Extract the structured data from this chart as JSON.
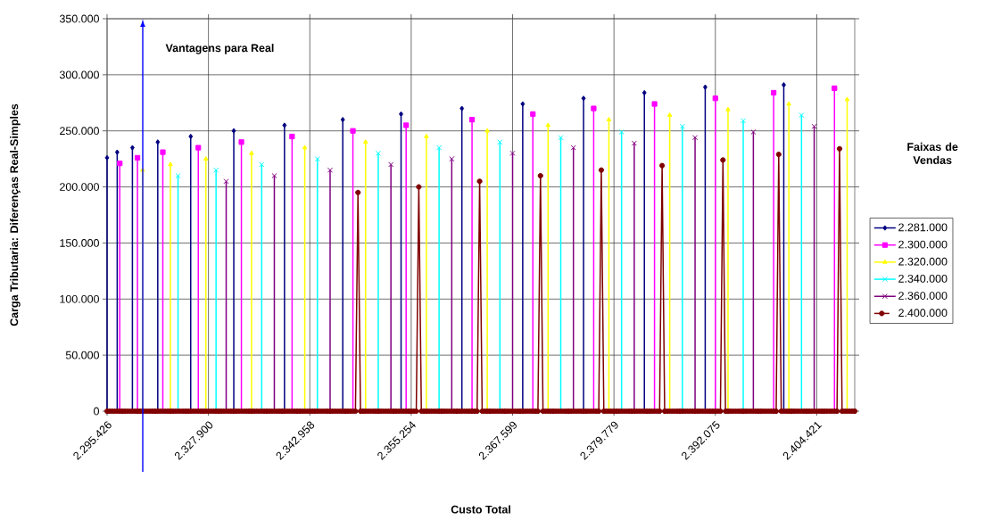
{
  "chart_data": {
    "type": "line",
    "xlabel": "Custo Total",
    "ylabel": "Carga Tributaria: Diferenças Real-Simples",
    "legend_title": "Faixas de Vendas",
    "annotations": [
      "Vantagens para Real"
    ],
    "categories": [
      "2.295.426",
      null,
      null,
      null,
      null,
      null,
      null,
      null,
      null,
      null,
      null,
      null,
      null,
      null,
      null,
      null,
      null,
      null,
      null,
      null,
      null,
      null,
      null,
      null,
      null,
      null,
      null,
      null,
      null,
      null,
      null,
      null,
      null,
      null,
      null,
      null,
      null,
      null,
      null,
      null,
      "2.327.900",
      null,
      null,
      null,
      null,
      null,
      null,
      null,
      null,
      null,
      null,
      null,
      null,
      null,
      null,
      null,
      null,
      null,
      null,
      null,
      null,
      null,
      null,
      null,
      null,
      null,
      null,
      null,
      null,
      null,
      null,
      null,
      null,
      null,
      null,
      null,
      null,
      null,
      null,
      null,
      "2.342.958",
      null,
      null,
      null,
      null,
      null,
      null,
      null,
      null,
      null,
      null,
      null,
      null,
      null,
      null,
      null,
      null,
      null,
      null,
      null,
      null,
      null,
      null,
      null,
      null,
      null,
      null,
      null,
      null,
      null,
      null,
      null,
      null,
      null,
      null,
      null,
      null,
      null,
      null,
      null,
      "2.355.254",
      null,
      null,
      null,
      null,
      null,
      null,
      null,
      null,
      null,
      null,
      null,
      null,
      null,
      null,
      null,
      null,
      null,
      null,
      null,
      null,
      null,
      null,
      null,
      null,
      null,
      null,
      null,
      null,
      null,
      null,
      null,
      null,
      null,
      null,
      null,
      null,
      null,
      null,
      null,
      "2.367.599",
      null,
      null,
      null,
      null,
      null,
      null,
      null,
      null,
      null,
      null,
      null,
      null,
      null,
      null,
      null,
      null,
      null,
      null,
      null,
      null,
      null,
      null,
      null,
      null,
      null,
      null,
      null,
      null,
      null,
      null,
      null,
      null,
      null,
      null,
      null,
      null,
      null,
      null,
      null,
      "2.379.779",
      null,
      null,
      null,
      null,
      null,
      null,
      null,
      null,
      null,
      null,
      null,
      null,
      null,
      null,
      null,
      null,
      null,
      null,
      null,
      null,
      null,
      null,
      null,
      null,
      null,
      null,
      null,
      null,
      null,
      null,
      null,
      null,
      null,
      null,
      null,
      null,
      null,
      null,
      null,
      "2.392.075",
      null,
      null,
      null,
      null,
      null,
      null,
      null,
      null,
      null,
      null,
      null,
      null,
      null,
      null,
      null,
      null,
      null,
      null,
      null,
      null,
      null,
      null,
      null,
      null,
      null,
      null,
      null,
      null,
      null,
      null,
      null,
      null,
      null,
      null,
      null,
      null,
      null,
      null,
      null,
      "2.404.421",
      null,
      null,
      null,
      null,
      null,
      null,
      null,
      null,
      null,
      null,
      null,
      null,
      null,
      null,
      null
    ],
    "series": [
      {
        "name": "2.281.000",
        "color": "#000080",
        "type": "lollipop",
        "marker": "diamond",
        "values": [
          226000,
          null,
          null,
          null,
          231000,
          null,
          null,
          null,
          null,
          null,
          235000,
          null,
          null,
          null,
          null,
          null,
          null,
          null,
          null,
          null,
          240000,
          null,
          null,
          null,
          null,
          null,
          null,
          null,
          null,
          null,
          null,
          null,
          null,
          245000,
          null,
          null,
          null,
          null,
          null,
          null,
          null,
          null,
          null,
          null,
          null,
          null,
          null,
          null,
          null,
          null,
          250000,
          null,
          null,
          null,
          null,
          null,
          null,
          null,
          null,
          null,
          null,
          null,
          null,
          null,
          null,
          null,
          null,
          null,
          null,
          null,
          255000,
          null,
          null,
          null,
          null,
          null,
          null,
          null,
          null,
          null,
          null,
          null,
          null,
          null,
          null,
          null,
          null,
          null,
          null,
          null,
          null,
          null,
          null,
          260000,
          null,
          null,
          null,
          null,
          null,
          null,
          null,
          null,
          null,
          null,
          null,
          null,
          null,
          null,
          null,
          null,
          null,
          null,
          null,
          null,
          null,
          null,
          265000,
          null,
          null,
          null,
          null,
          null,
          null,
          null,
          null,
          null,
          null,
          null,
          null,
          null,
          null,
          null,
          null,
          null,
          null,
          null,
          null,
          null,
          null,
          null,
          270000,
          null,
          null,
          null,
          null,
          null,
          null,
          null,
          null,
          null,
          null,
          null,
          null,
          null,
          null,
          null,
          null,
          null,
          null,
          null,
          null,
          null,
          null,
          null,
          274000,
          null,
          null,
          null,
          null,
          null,
          null,
          null,
          null,
          null,
          null,
          null,
          null,
          null,
          null,
          null,
          null,
          null,
          null,
          null,
          null,
          null,
          null,
          null,
          279000,
          null,
          null,
          null,
          null,
          null,
          null,
          null,
          null,
          null,
          null,
          null,
          null,
          null,
          null,
          null,
          null,
          null,
          null,
          null,
          null,
          null,
          null,
          null,
          284000,
          null,
          null,
          null,
          null,
          null,
          null,
          null,
          null,
          null,
          null,
          null,
          null,
          null,
          null,
          null,
          null,
          null,
          null,
          null,
          null,
          null,
          null,
          null,
          289000,
          null,
          null,
          null,
          null,
          null,
          null,
          null,
          null,
          null,
          null,
          null,
          null,
          null,
          null,
          null,
          null,
          null,
          null,
          null,
          null,
          null,
          null,
          null,
          null,
          null,
          null,
          null,
          null,
          null,
          null,
          291000,
          null,
          null,
          null,
          null,
          null,
          null,
          null,
          null,
          null,
          null,
          null,
          null,
          null,
          null,
          null,
          null,
          null,
          null,
          null,
          null,
          null,
          null,
          null,
          null,
          null,
          null,
          null,
          null
        ]
      },
      {
        "name": "2.300.000",
        "color": "#ff00ff",
        "type": "lollipop",
        "marker": "square",
        "values": [
          null,
          null,
          null,
          null,
          null,
          221000,
          null,
          null,
          null,
          null,
          null,
          null,
          226000,
          null,
          null,
          null,
          null,
          null,
          null,
          null,
          null,
          null,
          231000,
          null,
          null,
          null,
          null,
          null,
          null,
          null,
          null,
          null,
          null,
          null,
          null,
          null,
          235000,
          null,
          null,
          null,
          null,
          null,
          null,
          null,
          null,
          null,
          null,
          null,
          null,
          null,
          null,
          null,
          null,
          240000,
          null,
          null,
          null,
          null,
          null,
          null,
          null,
          null,
          null,
          null,
          null,
          null,
          null,
          null,
          null,
          null,
          null,
          null,
          null,
          245000,
          null,
          null,
          null,
          null,
          null,
          null,
          null,
          null,
          null,
          null,
          null,
          null,
          null,
          null,
          null,
          null,
          null,
          null,
          null,
          null,
          null,
          null,
          null,
          250000,
          null,
          null,
          null,
          null,
          null,
          null,
          null,
          null,
          null,
          null,
          null,
          null,
          null,
          null,
          null,
          null,
          null,
          null,
          null,
          null,
          255000,
          null,
          null,
          null,
          null,
          null,
          null,
          null,
          null,
          null,
          null,
          null,
          null,
          null,
          null,
          null,
          null,
          null,
          null,
          null,
          null,
          null,
          null,
          null,
          null,
          null,
          260000,
          null,
          null,
          null,
          null,
          null,
          null,
          null,
          null,
          null,
          null,
          null,
          null,
          null,
          null,
          null,
          null,
          null,
          null,
          null,
          null,
          null,
          null,
          null,
          265000,
          null,
          null,
          null,
          null,
          null,
          null,
          null,
          null,
          null,
          null,
          null,
          null,
          null,
          null,
          null,
          null,
          null,
          null,
          null,
          null,
          null,
          null,
          null,
          270000,
          null,
          null,
          null,
          null,
          null,
          null,
          null,
          null,
          null,
          null,
          null,
          null,
          null,
          null,
          null,
          null,
          null,
          null,
          null,
          null,
          null,
          null,
          null,
          274000,
          null,
          null,
          null,
          null,
          null,
          null,
          null,
          null,
          null,
          null,
          null,
          null,
          null,
          null,
          null,
          null,
          null,
          null,
          null,
          null,
          null,
          null,
          null,
          279000,
          null,
          null,
          null,
          null,
          null,
          null,
          null,
          null,
          null,
          null,
          null,
          null,
          null,
          null,
          null,
          null,
          null,
          null,
          null,
          null,
          null,
          null,
          284000,
          null,
          null,
          null,
          null,
          null,
          null,
          null,
          null,
          null,
          null,
          null,
          null,
          null,
          null,
          null,
          null,
          null,
          null,
          null,
          null,
          null,
          null,
          null,
          288000,
          null,
          null,
          null,
          null,
          null,
          null,
          null,
          null
        ]
      },
      {
        "name": "2.320.000",
        "color": "#ffff00",
        "type": "lollipop",
        "marker": "triangle",
        "values": [
          null,
          null,
          null,
          null,
          null,
          null,
          null,
          null,
          null,
          null,
          null,
          null,
          null,
          null,
          215000,
          null,
          null,
          null,
          null,
          null,
          null,
          null,
          null,
          null,
          null,
          220000,
          null,
          null,
          null,
          null,
          null,
          null,
          null,
          null,
          null,
          null,
          null,
          null,
          null,
          225000,
          null,
          null,
          null,
          null,
          null,
          null,
          null,
          null,
          null,
          null,
          null,
          null,
          null,
          null,
          null,
          null,
          null,
          230000,
          null,
          null,
          null,
          null,
          null,
          null,
          null,
          null,
          null,
          null,
          null,
          null,
          null,
          null,
          null,
          null,
          null,
          null,
          null,
          null,
          235000,
          null,
          null,
          null,
          null,
          null,
          null,
          null,
          null,
          null,
          null,
          null,
          null,
          null,
          null,
          null,
          null,
          null,
          null,
          null,
          null,
          null,
          null,
          null,
          240000,
          null,
          null,
          null,
          null,
          null,
          null,
          null,
          null,
          null,
          null,
          null,
          null,
          null,
          null,
          null,
          null,
          null,
          null,
          null,
          null,
          null,
          null,
          null,
          245000,
          null,
          null,
          null,
          null,
          null,
          null,
          null,
          null,
          null,
          null,
          null,
          null,
          null,
          null,
          null,
          null,
          null,
          null,
          null,
          null,
          null,
          null,
          null,
          250000,
          null,
          null,
          null,
          null,
          null,
          null,
          null,
          null,
          null,
          null,
          null,
          null,
          null,
          null,
          null,
          null,
          null,
          null,
          null,
          null,
          null,
          null,
          null,
          255000,
          null,
          null,
          null,
          null,
          null,
          null,
          null,
          null,
          null,
          null,
          null,
          null,
          null,
          null,
          null,
          null,
          null,
          null,
          null,
          null,
          null,
          null,
          null,
          260000,
          null,
          null,
          null,
          null,
          null,
          null,
          null,
          null,
          null,
          null,
          null,
          null,
          null,
          null,
          null,
          null,
          null,
          null,
          null,
          null,
          null,
          null,
          null,
          264000,
          null,
          null,
          null,
          null,
          null,
          null,
          null,
          null,
          null,
          null,
          null,
          null,
          null,
          null,
          null,
          null,
          null,
          null,
          null,
          null,
          null,
          null,
          269000,
          null,
          null,
          null,
          null,
          null,
          null,
          null,
          null,
          null,
          null,
          null,
          null,
          null,
          null,
          null,
          null,
          null,
          null,
          null,
          null,
          null,
          null,
          null,
          274000,
          null,
          null,
          null,
          null,
          null,
          null,
          null,
          null,
          null,
          null,
          null,
          null,
          null,
          null,
          null,
          null,
          null,
          null,
          null,
          null,
          null,
          null,
          278000,
          null,
          null,
          null
        ]
      },
      {
        "name": "2.340.000",
        "color": "#00ffff",
        "type": "lollipop",
        "marker": "cross",
        "values": [
          null,
          null,
          null,
          null,
          null,
          null,
          null,
          null,
          null,
          null,
          null,
          null,
          null,
          null,
          null,
          null,
          null,
          null,
          null,
          null,
          null,
          null,
          null,
          null,
          null,
          null,
          null,
          null,
          210000,
          null,
          null,
          null,
          null,
          null,
          null,
          null,
          null,
          null,
          null,
          null,
          null,
          null,
          null,
          215000,
          null,
          null,
          null,
          null,
          null,
          null,
          null,
          null,
          null,
          null,
          null,
          null,
          null,
          null,
          null,
          null,
          null,
          220000,
          null,
          null,
          null,
          null,
          null,
          null,
          null,
          null,
          null,
          null,
          null,
          null,
          null,
          null,
          null,
          null,
          null,
          null,
          null,
          null,
          null,
          225000,
          null,
          null,
          null,
          null,
          null,
          null,
          null,
          null,
          null,
          null,
          null,
          null,
          null,
          null,
          null,
          null,
          null,
          null,
          null,
          null,
          null,
          null,
          null,
          230000,
          null,
          null,
          null,
          null,
          null,
          null,
          null,
          null,
          null,
          null,
          null,
          null,
          null,
          null,
          null,
          null,
          null,
          null,
          null,
          null,
          null,
          null,
          null,
          235000,
          null,
          null,
          null,
          null,
          null,
          null,
          null,
          null,
          null,
          null,
          null,
          null,
          null,
          null,
          null,
          null,
          null,
          null,
          null,
          null,
          null,
          null,
          null,
          240000,
          null,
          null,
          null,
          null,
          null,
          null,
          null,
          null,
          null,
          null,
          null,
          null,
          null,
          null,
          null,
          null,
          null,
          null,
          null,
          null,
          null,
          null,
          null,
          244000,
          null,
          null,
          null,
          null,
          null,
          null,
          null,
          null,
          null,
          null,
          null,
          null,
          null,
          null,
          null,
          null,
          null,
          null,
          null,
          null,
          null,
          null,
          null,
          249000,
          null,
          null,
          null,
          null,
          null,
          null,
          null,
          null,
          null,
          null,
          null,
          null,
          null,
          null,
          null,
          null,
          null,
          null,
          null,
          null,
          null,
          null,
          null,
          254000,
          null,
          null,
          null,
          null,
          null,
          null,
          null,
          null,
          null,
          null,
          null,
          null,
          null,
          null,
          null,
          null,
          null,
          null,
          null,
          null,
          null,
          null,
          null,
          259000,
          null,
          null,
          null,
          null,
          null,
          null,
          null,
          null,
          null,
          null,
          null,
          null,
          null,
          null,
          null,
          null,
          null,
          null,
          null,
          null,
          null,
          null,
          264000,
          null,
          null,
          null,
          null,
          null,
          null,
          null,
          null,
          null,
          null,
          null,
          null,
          null,
          null,
          null,
          null,
          null,
          null,
          null,
          null,
          null
        ]
      },
      {
        "name": "2.360.000",
        "color": "#800080",
        "type": "lollipop",
        "marker": "cross",
        "values": [
          null,
          null,
          null,
          null,
          null,
          null,
          null,
          null,
          null,
          null,
          null,
          null,
          null,
          null,
          null,
          null,
          null,
          null,
          null,
          null,
          null,
          null,
          null,
          null,
          null,
          null,
          null,
          null,
          null,
          null,
          null,
          null,
          null,
          null,
          null,
          null,
          null,
          null,
          null,
          null,
          null,
          null,
          null,
          null,
          null,
          null,
          null,
          205000,
          null,
          null,
          null,
          null,
          null,
          null,
          null,
          null,
          null,
          null,
          null,
          null,
          null,
          null,
          null,
          null,
          null,
          null,
          210000,
          null,
          null,
          null,
          null,
          null,
          null,
          null,
          null,
          null,
          null,
          null,
          null,
          null,
          null,
          null,
          null,
          null,
          null,
          null,
          null,
          null,
          215000,
          null,
          null,
          null,
          null,
          null,
          null,
          null,
          null,
          null,
          null,
          null,
          null,
          null,
          null,
          null,
          null,
          null,
          null,
          null,
          null,
          null,
          null,
          null,
          220000,
          null,
          null,
          null,
          null,
          null,
          null,
          null,
          null,
          null,
          null,
          null,
          null,
          null,
          null,
          null,
          null,
          null,
          null,
          null,
          null,
          null,
          null,
          null,
          225000,
          null,
          null,
          null,
          null,
          null,
          null,
          null,
          null,
          null,
          null,
          null,
          null,
          null,
          null,
          null,
          null,
          null,
          null,
          null,
          null,
          null,
          null,
          null,
          230000,
          null,
          null,
          null,
          null,
          null,
          null,
          null,
          null,
          null,
          null,
          null,
          null,
          null,
          null,
          null,
          null,
          null,
          null,
          null,
          null,
          null,
          null,
          null,
          235000,
          null,
          null,
          null,
          null,
          null,
          null,
          null,
          null,
          null,
          null,
          null,
          null,
          null,
          null,
          null,
          null,
          null,
          null,
          null,
          null,
          null,
          null,
          null,
          239000,
          null,
          null,
          null,
          null,
          null,
          null,
          null,
          null,
          null,
          null,
          null,
          null,
          null,
          null,
          null,
          null,
          null,
          null,
          null,
          null,
          null,
          null,
          null,
          244000,
          null,
          null,
          null,
          null,
          null,
          null,
          null,
          null,
          null,
          null,
          null,
          null,
          null,
          null,
          null,
          null,
          null,
          null,
          null,
          null,
          null,
          null,
          249000,
          null,
          null,
          null,
          null,
          null,
          null,
          null,
          null,
          null,
          null,
          null,
          null,
          null,
          null,
          null,
          null,
          null,
          null,
          null,
          null,
          null,
          null,
          null,
          254000,
          null,
          null,
          null,
          null,
          null,
          null,
          null,
          null,
          null,
          null,
          null,
          null,
          null,
          null,
          null,
          null
        ]
      },
      {
        "name": "2.400.000",
        "color": "#800000",
        "marker": "circle",
        "values": [
          0,
          0,
          0,
          0,
          0,
          0,
          0,
          0,
          0,
          0,
          0,
          0,
          0,
          0,
          0,
          0,
          0,
          0,
          0,
          0,
          0,
          0,
          0,
          0,
          0,
          0,
          0,
          0,
          0,
          0,
          0,
          0,
          0,
          0,
          0,
          0,
          0,
          0,
          0,
          0,
          0,
          0,
          0,
          0,
          0,
          0,
          0,
          0,
          0,
          0,
          0,
          0,
          0,
          0,
          0,
          0,
          0,
          0,
          0,
          0,
          0,
          0,
          0,
          0,
          0,
          0,
          0,
          0,
          0,
          0,
          0,
          0,
          0,
          0,
          0,
          0,
          0,
          0,
          0,
          0,
          0,
          0,
          0,
          0,
          0,
          0,
          0,
          0,
          0,
          0,
          0,
          0,
          0,
          0,
          0,
          0,
          0,
          0,
          0,
          195000,
          0,
          0,
          0,
          0,
          0,
          0,
          0,
          0,
          0,
          0,
          0,
          0,
          0,
          0,
          0,
          0,
          0,
          0,
          0,
          0,
          0,
          0,
          0,
          200000,
          0,
          0,
          0,
          0,
          0,
          0,
          0,
          0,
          0,
          0,
          0,
          0,
          0,
          0,
          0,
          0,
          0,
          0,
          0,
          0,
          0,
          0,
          0,
          205000,
          0,
          0,
          0,
          0,
          0,
          0,
          0,
          0,
          0,
          0,
          0,
          0,
          0,
          0,
          0,
          0,
          0,
          0,
          0,
          0,
          0,
          0,
          0,
          210000,
          0,
          0,
          0,
          0,
          0,
          0,
          0,
          0,
          0,
          0,
          0,
          0,
          0,
          0,
          0,
          0,
          0,
          0,
          0,
          0,
          0,
          0,
          0,
          215000,
          0,
          0,
          0,
          0,
          0,
          0,
          0,
          0,
          0,
          0,
          0,
          0,
          0,
          0,
          0,
          0,
          0,
          0,
          0,
          0,
          0,
          0,
          0,
          219000,
          0,
          0,
          0,
          0,
          0,
          0,
          0,
          0,
          0,
          0,
          0,
          0,
          0,
          0,
          0,
          0,
          0,
          0,
          0,
          0,
          0,
          0,
          0,
          224000,
          0,
          0,
          0,
          0,
          0,
          0,
          0,
          0,
          0,
          0,
          0,
          0,
          0,
          0,
          0,
          0,
          0,
          0,
          0,
          0,
          0,
          229000,
          0,
          0,
          0,
          0,
          0,
          0,
          0,
          0,
          0,
          0,
          0,
          0,
          0,
          0,
          0,
          0,
          0,
          0,
          0,
          0,
          0,
          0,
          0,
          234000,
          0,
          0,
          0,
          0,
          0,
          0
        ]
      }
    ],
    "ylim": [
      0,
      350000
    ],
    "yticks": [
      0,
      {
        "value": 50000,
        "label": "50.000"
      },
      {
        "value": 100000,
        "label": "100.000"
      },
      {
        "value": 150000,
        "label": "150.000"
      },
      {
        "value": 200000,
        "label": "200.000"
      },
      {
        "value": 250000,
        "label": "250.000"
      },
      {
        "value": 300000,
        "label": "300.000"
      },
      {
        "value": 350000,
        "label": "350.000"
      }
    ],
    "grid": true,
    "legend": "right"
  }
}
